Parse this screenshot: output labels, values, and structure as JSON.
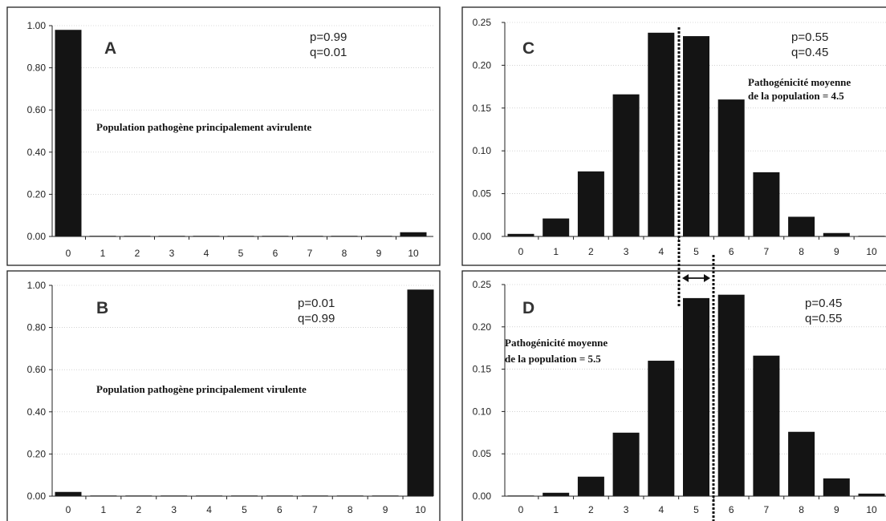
{
  "chart_data": [
    {
      "type": "bar",
      "panel_letter": "A",
      "p_label": "p=0.99",
      "q_label": "q=0.01",
      "annotations": [
        "Population pathogène principalement avirulente"
      ],
      "categories": [
        "0",
        "1",
        "2",
        "3",
        "4",
        "5",
        "6",
        "7",
        "8",
        "9",
        "10"
      ],
      "values": [
        0.98,
        0,
        0,
        0,
        0,
        0,
        0,
        0,
        0,
        0,
        0.02
      ],
      "ylim": [
        0,
        1.0
      ],
      "yticks": [
        "0.00",
        "0.20",
        "0.40",
        "0.60",
        "0.80",
        "1.00"
      ],
      "grid": true
    },
    {
      "type": "bar",
      "panel_letter": "B",
      "p_label": "p=0.01",
      "q_label": "q=0.99",
      "annotations": [
        "Population pathogène principalement virulente"
      ],
      "categories": [
        "0",
        "1",
        "2",
        "3",
        "4",
        "5",
        "6",
        "7",
        "8",
        "9",
        "10"
      ],
      "values": [
        0.02,
        0,
        0,
        0,
        0,
        0,
        0,
        0,
        0,
        0,
        0.98
      ],
      "ylim": [
        0,
        1.0
      ],
      "yticks": [
        "0.00",
        "0.20",
        "0.40",
        "0.60",
        "0.80",
        "1.00"
      ],
      "grid": true
    },
    {
      "type": "bar",
      "panel_letter": "C",
      "p_label": "p=0.55",
      "q_label": "q=0.45",
      "annotations": [
        "Pathogénicité moyenne",
        "de la population = 4.5"
      ],
      "categories": [
        "0",
        "1",
        "2",
        "3",
        "4",
        "5",
        "6",
        "7",
        "8",
        "9",
        "10"
      ],
      "values": [
        0.003,
        0.021,
        0.076,
        0.166,
        0.238,
        0.234,
        0.16,
        0.075,
        0.023,
        0.004,
        0.0005
      ],
      "ylim": [
        0,
        0.25
      ],
      "yticks": [
        "0.00",
        "0.05",
        "0.10",
        "0.15",
        "0.20",
        "0.25"
      ],
      "grid": true
    },
    {
      "type": "bar",
      "panel_letter": "D",
      "p_label": "p=0.45",
      "q_label": "q=0.55",
      "annotations": [
        "Pathogénicité moyenne",
        "de la population = 5.5"
      ],
      "categories": [
        "0",
        "1",
        "2",
        "3",
        "4",
        "5",
        "6",
        "7",
        "8",
        "9",
        "10"
      ],
      "values": [
        0.0005,
        0.004,
        0.023,
        0.075,
        0.16,
        0.234,
        0.238,
        0.166,
        0.076,
        0.021,
        0.003
      ],
      "ylim": [
        0,
        0.25
      ],
      "yticks": [
        "0.00",
        "0.05",
        "0.10",
        "0.15",
        "0.20",
        "0.25"
      ],
      "grid": true
    }
  ]
}
